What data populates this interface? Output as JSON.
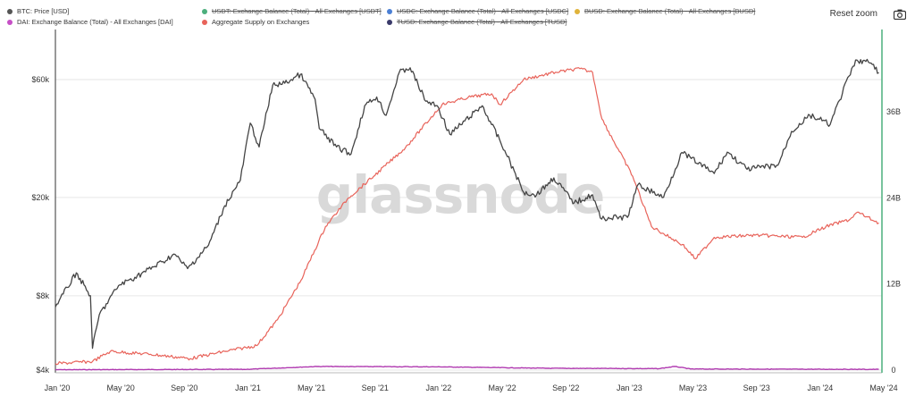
{
  "legend": [
    {
      "label": "BTC: Price [USD]",
      "color": "#555555",
      "disabled": false
    },
    {
      "label": "USDT: Exchange Balance (Total) - All Exchanges [USDT]",
      "color": "#4caf7d",
      "disabled": true
    },
    {
      "label": "USDC: Exchange Balance (Total) - All Exchanges [USDC]",
      "color": "#4a7fd4",
      "disabled": true
    },
    {
      "label": "BUSD: Exchange Balance (Total) - All Exchanges [BUSD]",
      "color": "#e0b33a",
      "disabled": true
    },
    {
      "label": "DAI: Exchange Balance (Total) - All Exchanges [DAI]",
      "color": "#c64fc6",
      "disabled": false
    },
    {
      "label": "Aggregate Supply on Exchanges",
      "color": "#e8635a",
      "disabled": false
    },
    {
      "label": "TUSD: Exchange Balance (Total) - All Exchanges [TUSD]",
      "color": "#3a3a6a",
      "disabled": true
    }
  ],
  "toolbar": {
    "reset_label": "Reset zoom",
    "camera_icon": "camera-icon"
  },
  "watermark": "glassnode",
  "colors": {
    "btc": "#444444",
    "supply": "#e8635a",
    "dai": "#b03ab0",
    "right_axis": "#4caf7d",
    "grid": "#e6e6e6"
  },
  "chart_data": {
    "type": "line",
    "x_ticks": [
      "Jan '20",
      "May '20",
      "Sep '20",
      "Jan '21",
      "May '21",
      "Sep '21",
      "Jan '22",
      "May '22",
      "Sep '22",
      "Jan '23",
      "May '23",
      "Sep '23",
      "Jan '24",
      "May '24"
    ],
    "x_range": [
      "2020-01-01",
      "2024-05-01"
    ],
    "left_axis": {
      "scale": "log",
      "ticks": [
        {
          "value": 4000,
          "label": "$4k"
        },
        {
          "value": 8000,
          "label": "$8k"
        },
        {
          "value": 20000,
          "label": "$20k"
        },
        {
          "value": 60000,
          "label": "$60k"
        }
      ]
    },
    "right_axis": {
      "scale": "linear",
      "ticks": [
        {
          "value": 0,
          "label": "0"
        },
        {
          "value": 12,
          "label": "12B"
        },
        {
          "value": 24,
          "label": "24B"
        },
        {
          "value": 36,
          "label": "36B"
        }
      ]
    },
    "series": [
      {
        "name": "BTC: Price [USD]",
        "axis": "left",
        "points": [
          [
            "2020-01-01",
            7200
          ],
          [
            "2020-02-10",
            9900
          ],
          [
            "2020-03-08",
            8000
          ],
          [
            "2020-03-12",
            4900
          ],
          [
            "2020-03-25",
            6700
          ],
          [
            "2020-05-01",
            8800
          ],
          [
            "2020-06-01",
            9500
          ],
          [
            "2020-07-25",
            11000
          ],
          [
            "2020-08-15",
            11800
          ],
          [
            "2020-09-10",
            10300
          ],
          [
            "2020-10-20",
            12800
          ],
          [
            "2020-11-20",
            18500
          ],
          [
            "2020-12-20",
            23500
          ],
          [
            "2021-01-08",
            40000
          ],
          [
            "2021-01-25",
            32000
          ],
          [
            "2021-02-20",
            57000
          ],
          [
            "2021-03-15",
            58000
          ],
          [
            "2021-04-14",
            63000
          ],
          [
            "2021-05-12",
            50000
          ],
          [
            "2021-05-20",
            38000
          ],
          [
            "2021-06-22",
            32000
          ],
          [
            "2021-07-20",
            30000
          ],
          [
            "2021-08-15",
            47000
          ],
          [
            "2021-09-07",
            51000
          ],
          [
            "2021-09-25",
            43000
          ],
          [
            "2021-10-20",
            64000
          ],
          [
            "2021-11-10",
            67000
          ],
          [
            "2021-12-10",
            49000
          ],
          [
            "2022-01-01",
            47000
          ],
          [
            "2022-01-25",
            36000
          ],
          [
            "2022-03-28",
            47000
          ],
          [
            "2022-05-10",
            31000
          ],
          [
            "2022-06-15",
            21000
          ],
          [
            "2022-07-10",
            20500
          ],
          [
            "2022-08-12",
            24000
          ],
          [
            "2022-09-20",
            19000
          ],
          [
            "2022-10-25",
            20500
          ],
          [
            "2022-11-09",
            16500
          ],
          [
            "2022-12-31",
            16600
          ],
          [
            "2023-01-20",
            22500
          ],
          [
            "2023-03-10",
            20000
          ],
          [
            "2023-04-14",
            30400
          ],
          [
            "2023-06-15",
            25000
          ],
          [
            "2023-07-10",
            30500
          ],
          [
            "2023-08-17",
            26000
          ],
          [
            "2023-10-15",
            27000
          ],
          [
            "2023-11-10",
            37000
          ],
          [
            "2023-12-15",
            43000
          ],
          [
            "2024-01-23",
            39500
          ],
          [
            "2024-02-28",
            62000
          ],
          [
            "2024-03-14",
            72000
          ],
          [
            "2024-04-10",
            70000
          ],
          [
            "2024-04-25",
            64000
          ]
        ]
      },
      {
        "name": "Aggregate Supply on Exchanges",
        "axis": "right",
        "points": [
          [
            "2020-01-01",
            0.9
          ],
          [
            "2020-03-12",
            1.2
          ],
          [
            "2020-04-15",
            2.6
          ],
          [
            "2020-07-01",
            2.2
          ],
          [
            "2020-09-15",
            1.6
          ],
          [
            "2020-11-20",
            2.6
          ],
          [
            "2021-01-20",
            3.4
          ],
          [
            "2021-03-01",
            7.0
          ],
          [
            "2021-04-15",
            12.5
          ],
          [
            "2021-06-01",
            20.0
          ],
          [
            "2021-07-15",
            24.0
          ],
          [
            "2021-09-01",
            27.0
          ],
          [
            "2021-11-01",
            31.0
          ],
          [
            "2022-01-10",
            37.0
          ],
          [
            "2022-03-01",
            38.0
          ],
          [
            "2022-04-15",
            38.5
          ],
          [
            "2022-05-01",
            37.0
          ],
          [
            "2022-06-15",
            40.5
          ],
          [
            "2022-08-15",
            41.5
          ],
          [
            "2022-10-01",
            42.0
          ],
          [
            "2022-10-25",
            41.5
          ],
          [
            "2022-11-12",
            35.0
          ],
          [
            "2023-01-10",
            27.0
          ],
          [
            "2023-02-15",
            20.0
          ],
          [
            "2023-04-15",
            17.5
          ],
          [
            "2023-05-10",
            15.5
          ],
          [
            "2023-06-15",
            18.5
          ],
          [
            "2023-09-01",
            18.8
          ],
          [
            "2023-12-01",
            18.5
          ],
          [
            "2024-01-15",
            20.0
          ],
          [
            "2024-03-01",
            21.0
          ],
          [
            "2024-03-15",
            22.0
          ],
          [
            "2024-04-25",
            20.5
          ]
        ]
      },
      {
        "name": "DAI: Exchange Balance (Total) - All Exchanges [DAI]",
        "axis": "right",
        "points": [
          [
            "2020-01-01",
            0.05
          ],
          [
            "2021-01-01",
            0.1
          ],
          [
            "2021-05-15",
            0.5
          ],
          [
            "2022-01-01",
            0.45
          ],
          [
            "2022-08-01",
            0.25
          ],
          [
            "2023-03-01",
            0.2
          ],
          [
            "2023-04-01",
            0.5
          ],
          [
            "2023-05-01",
            0.15
          ],
          [
            "2024-04-25",
            0.1
          ]
        ]
      }
    ]
  }
}
